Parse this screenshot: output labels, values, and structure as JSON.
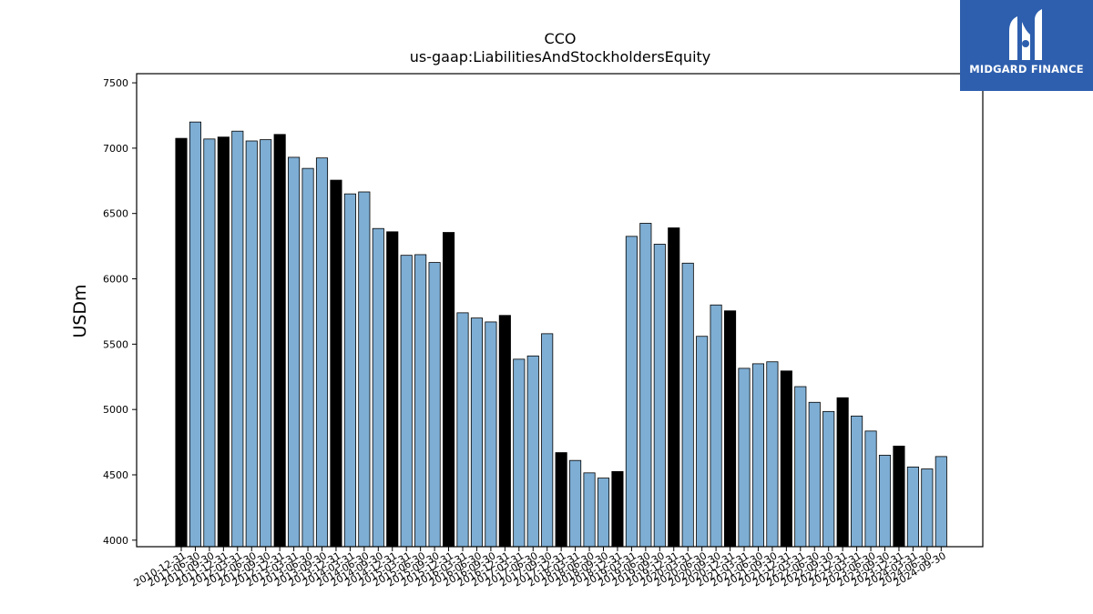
{
  "brand": {
    "name": "MIDGARD FINANCE",
    "bg_color": "#2e5fae"
  },
  "chart_data": {
    "type": "bar",
    "title": "CCO",
    "subtitle": "us-gaap:LiabilitiesAndStockholdersEquity",
    "ylabel": "USDm",
    "xlabel": "",
    "ylim": [
      3950,
      7570
    ],
    "yticks": [
      4000,
      4500,
      5000,
      5500,
      6000,
      6500,
      7000,
      7500
    ],
    "grid": false,
    "colors": {
      "annual": "#000000",
      "quarterly": "#7eaed4"
    },
    "categories": [
      "2010-12-31",
      "2011-06-30",
      "2011-09-30",
      "2011-12-31",
      "2012-03-31",
      "2012-06-30",
      "2012-09-30",
      "2012-12-31",
      "2013-03-31",
      "2013-06-30",
      "2013-09-30",
      "2013-12-31",
      "2014-03-31",
      "2014-06-30",
      "2014-09-30",
      "2014-12-31",
      "2015-03-31",
      "2015-06-30",
      "2015-09-30",
      "2015-12-31",
      "2016-03-31",
      "2016-06-30",
      "2016-09-30",
      "2016-12-31",
      "2017-03-31",
      "2017-06-30",
      "2017-09-30",
      "2017-12-31",
      "2018-03-31",
      "2018-06-30",
      "2018-09-30",
      "2018-12-31",
      "2019-03-31",
      "2019-06-30",
      "2019-09-30",
      "2019-12-31",
      "2020-03-31",
      "2020-06-30",
      "2020-09-30",
      "2020-12-31",
      "2021-03-31",
      "2021-06-30",
      "2021-09-30",
      "2021-12-31",
      "2022-03-31",
      "2022-06-30",
      "2022-09-30",
      "2022-12-31",
      "2023-03-31",
      "2023-06-30",
      "2023-09-30",
      "2023-12-31",
      "2024-03-31",
      "2024-06-30",
      "2024-09-30"
    ],
    "values": [
      7075,
      7200,
      7070,
      7085,
      7130,
      7055,
      7065,
      7105,
      6930,
      6845,
      6925,
      6755,
      6650,
      6665,
      6385,
      6360,
      6180,
      6185,
      6125,
      6355,
      5740,
      5700,
      5670,
      5720,
      5385,
      5410,
      5580,
      4670,
      4610,
      4515,
      4475,
      4525,
      6325,
      6425,
      6265,
      6390,
      6120,
      5560,
      5800,
      5755,
      5315,
      5350,
      5365,
      5295,
      5175,
      5055,
      4985,
      5090,
      4950,
      4835,
      4650,
      4720,
      4560,
      4545,
      4640
    ],
    "annual": [
      true,
      false,
      false,
      true,
      false,
      false,
      false,
      true,
      false,
      false,
      false,
      true,
      false,
      false,
      false,
      true,
      false,
      false,
      false,
      true,
      false,
      false,
      false,
      true,
      false,
      false,
      false,
      true,
      false,
      false,
      false,
      true,
      false,
      false,
      false,
      true,
      false,
      false,
      false,
      true,
      false,
      false,
      false,
      true,
      false,
      false,
      false,
      true,
      false,
      false,
      false,
      true,
      false,
      false,
      false
    ]
  }
}
